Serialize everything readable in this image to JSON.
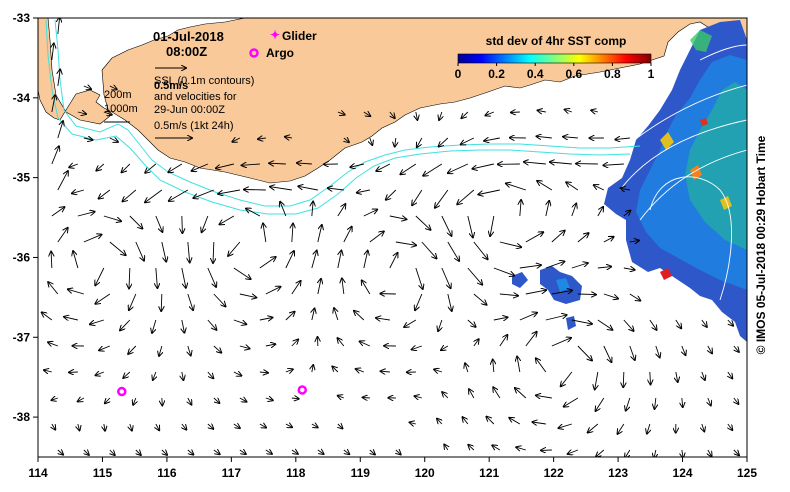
{
  "map": {
    "x_ticks": [
      "114",
      "115",
      "116",
      "117",
      "118",
      "119",
      "120",
      "121",
      "122",
      "123",
      "124",
      "125"
    ],
    "y_ticks": [
      "-33",
      "-34",
      "-35",
      "-36",
      "-37",
      "-38"
    ],
    "lon_range": [
      114,
      125
    ],
    "lat_range": [
      -38.5,
      -33
    ]
  },
  "overlay": {
    "date": "01-Jul-2018",
    "time": "08:00Z",
    "glider_label": "Glider",
    "argo_label": "Argo",
    "ssl_line1": "SSL  (0.1m contours)",
    "ssl_speed": "0.5m/s",
    "vel_line2": "and velocities for",
    "vel_line3": "29-Jun 00:00Z",
    "vel_line4": "0.5m/s (1kt 24h)",
    "depth_200": "200m",
    "depth_1000": "1000m"
  },
  "colorbar": {
    "title": "std dev of 4hr SST comp",
    "ticks": [
      "0",
      "0.2",
      "0.4",
      "0.6",
      "0.8",
      "1"
    ]
  },
  "credit": "© IMOS 05-Jul-2018 00:29 Hobart Time",
  "colors": {
    "land": "#f9c99a",
    "contour": "#40e0e0",
    "argo": "#ff00ff",
    "glider": "#ff00ff"
  },
  "argo_floats": [
    {
      "lon": 115.3,
      "lat": -37.68
    },
    {
      "lon": 118.1,
      "lat": -37.66
    }
  ]
}
